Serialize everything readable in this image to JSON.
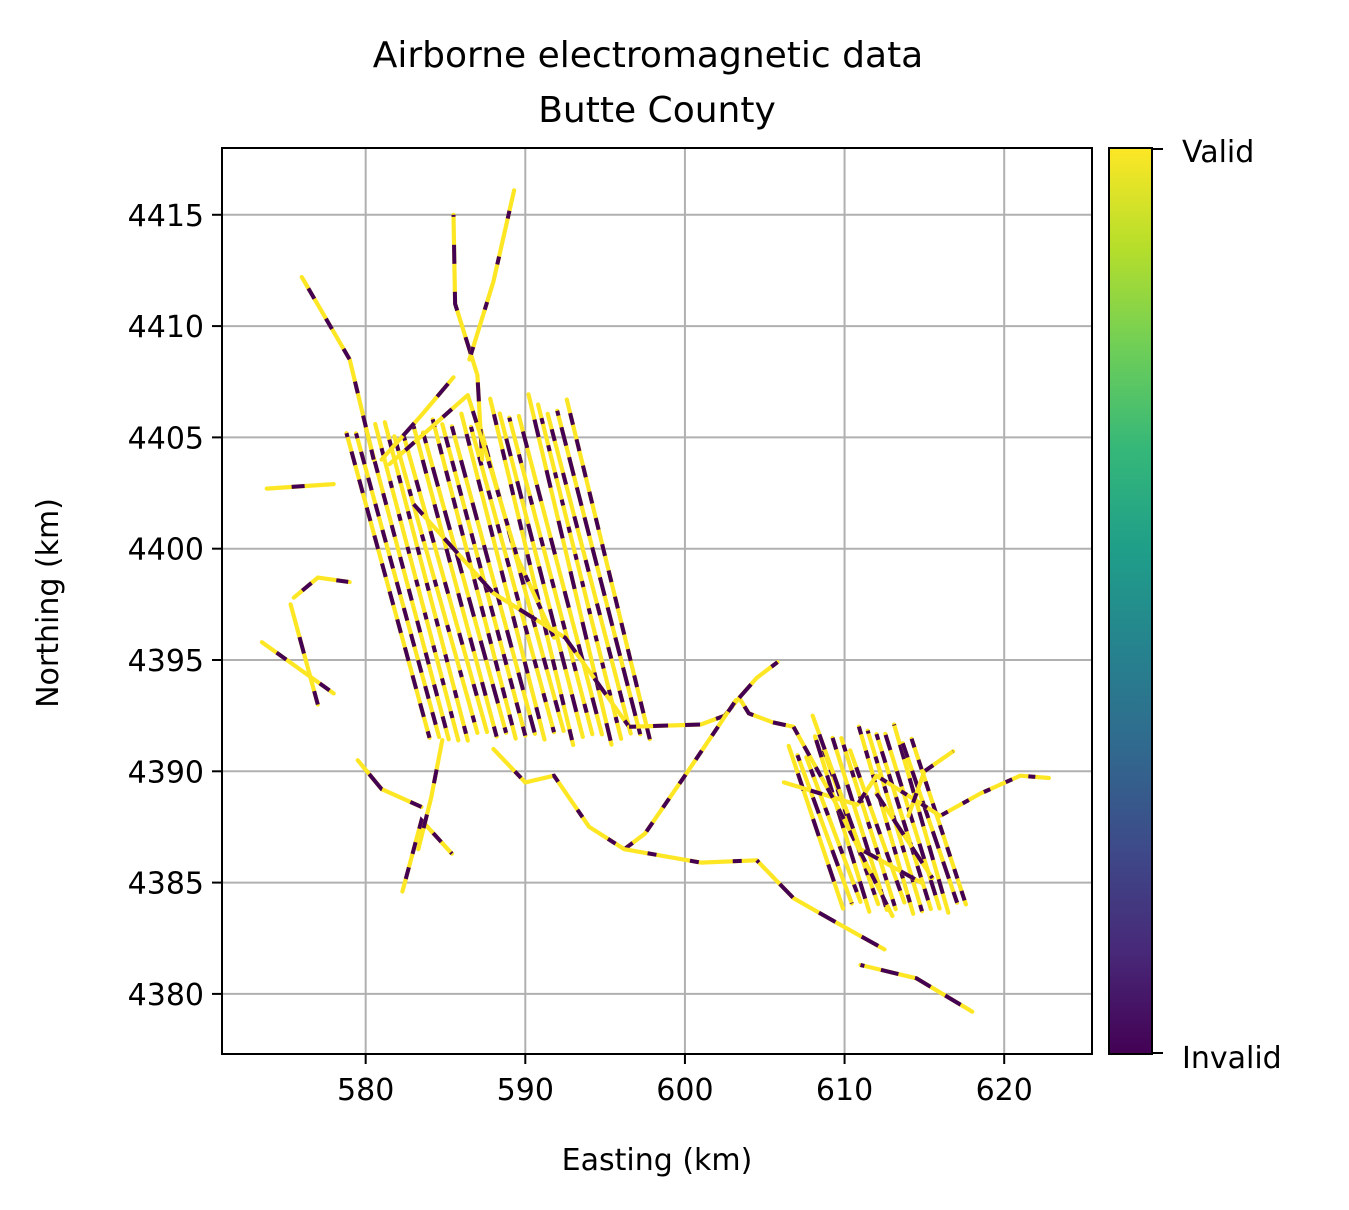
{
  "chart_data": {
    "type": "scatter",
    "title": "Airborne electromagnetic data\nButte County",
    "title_lines": [
      "Airborne electromagnetic data",
      "Butte County"
    ],
    "xlabel": "Easting (km)",
    "ylabel": "Northing (km)",
    "xlim": [
      571,
      625.5
    ],
    "ylim": [
      4377.3,
      4418
    ],
    "xticks": [
      580,
      590,
      600,
      610,
      620
    ],
    "yticks": [
      4380,
      4385,
      4390,
      4395,
      4400,
      4405,
      4410,
      4415
    ],
    "grid": true,
    "colorbar": {
      "colormap": "viridis",
      "stops": [
        "#440154",
        "#482878",
        "#3e4989",
        "#31688e",
        "#26828e",
        "#1f9e89",
        "#35b779",
        "#6ece58",
        "#b5de2b",
        "#fde725"
      ],
      "tick_labels": [
        "Invalid",
        "Valid"
      ],
      "range": [
        0,
        1
      ]
    },
    "colors": {
      "valid": "#fde725",
      "invalid": "#440154"
    },
    "flight_lines": [
      {
        "points": [
          [
            576,
            4412.2
          ],
          [
            579,
            4408.5
          ],
          [
            580.5,
            4404
          ]
        ]
      },
      {
        "points": [
          [
            585.5,
            4415
          ],
          [
            585.6,
            4411
          ],
          [
            587,
            4407.8
          ],
          [
            587.3,
            4404
          ]
        ]
      },
      {
        "points": [
          [
            589.3,
            4416.1
          ],
          [
            588,
            4412
          ],
          [
            586.5,
            4408.5
          ]
        ]
      },
      {
        "points": [
          [
            573.8,
            4402.7
          ],
          [
            578,
            4402.9
          ]
        ]
      },
      {
        "points": [
          [
            573.5,
            4395.8
          ],
          [
            578,
            4393.5
          ]
        ]
      },
      {
        "points": [
          [
            575.5,
            4397.8
          ],
          [
            577,
            4398.7
          ],
          [
            579,
            4398.5
          ]
        ]
      },
      {
        "points": [
          [
            575.3,
            4397.5
          ],
          [
            577,
            4393
          ]
        ]
      },
      {
        "points": [
          [
            579.5,
            4390.5
          ],
          [
            581,
            4389.2
          ],
          [
            583.5,
            4388.4
          ]
        ]
      },
      {
        "points": [
          [
            582.3,
            4384.6
          ],
          [
            583.5,
            4387.8
          ],
          [
            585.4,
            4386.3
          ]
        ]
      },
      {
        "points": [
          [
            584.8,
            4391.4
          ],
          [
            584.1,
            4388.8
          ],
          [
            583.3,
            4386.5
          ]
        ]
      },
      {
        "points": [
          [
            581,
            4404
          ],
          [
            583.5,
            4406
          ],
          [
            585.5,
            4407.7
          ]
        ]
      },
      {
        "points": [
          [
            581.5,
            4403.8
          ],
          [
            586.4,
            4406.9
          ],
          [
            587.5,
            4404.4
          ]
        ]
      },
      {
        "points": [
          [
            587.5,
            4404.4
          ],
          [
            589.5,
            4399.6
          ],
          [
            591.8,
            4396
          ]
        ]
      },
      {
        "points": [
          [
            583,
            4402
          ],
          [
            588,
            4398
          ],
          [
            592.5,
            4396
          ],
          [
            596.5,
            4392
          ]
        ]
      },
      {
        "points": [
          [
            596.5,
            4392
          ],
          [
            601,
            4392.1
          ],
          [
            602.5,
            4392.5
          ]
        ]
      },
      {
        "points": [
          [
            602.5,
            4392.5
          ],
          [
            603.4,
            4393.3
          ],
          [
            604,
            4392.6
          ],
          [
            605.5,
            4392.2
          ],
          [
            606.8,
            4392
          ]
        ]
      },
      {
        "points": [
          [
            603.4,
            4393.3
          ],
          [
            604.5,
            4394.2
          ],
          [
            605.8,
            4394.9
          ]
        ]
      },
      {
        "points": [
          [
            603.2,
            4393.2
          ],
          [
            600,
            4389.8
          ],
          [
            597.5,
            4387.2
          ],
          [
            596.2,
            4386.5
          ]
        ]
      },
      {
        "points": [
          [
            588,
            4391
          ],
          [
            590,
            4389.5
          ],
          [
            591.8,
            4389.8
          ],
          [
            594,
            4387.5
          ],
          [
            596.2,
            4386.5
          ],
          [
            601,
            4385.9
          ],
          [
            604.5,
            4386
          ]
        ]
      },
      {
        "points": [
          [
            604.5,
            4386
          ],
          [
            606.8,
            4384.3
          ],
          [
            609.5,
            4383.2
          ],
          [
            612.5,
            4382
          ]
        ]
      },
      {
        "points": [
          [
            611,
            4381.3
          ],
          [
            614.5,
            4380.7
          ],
          [
            618,
            4379.2
          ]
        ]
      },
      {
        "points": [
          [
            606.2,
            4389.5
          ],
          [
            610.8,
            4388.5
          ],
          [
            612,
            4389.8
          ]
        ]
      },
      {
        "points": [
          [
            612,
            4389.8
          ],
          [
            616,
            4388
          ],
          [
            618.5,
            4389
          ],
          [
            621,
            4389.8
          ],
          [
            622.8,
            4389.7
          ]
        ]
      },
      {
        "points": [
          [
            614,
            4388
          ],
          [
            615,
            4390
          ],
          [
            616.8,
            4390.9
          ]
        ]
      },
      {
        "points": [
          [
            606.8,
            4392
          ],
          [
            609.5,
            4388.5
          ],
          [
            613,
            4383.5
          ]
        ]
      },
      {
        "points": [
          [
            608,
            4392.5
          ],
          [
            611,
            4386.5
          ],
          [
            614.8,
            4385
          ]
        ]
      },
      {
        "points": [
          [
            615.5,
            4385.2
          ],
          [
            612,
            4389
          ]
        ]
      }
    ],
    "survey_blocks": [
      {
        "lines": 24,
        "x_start": 578.8,
        "x_step": 0.6,
        "y_top": 4405.2,
        "y_bottom": 4391.5,
        "slant": 5.2,
        "rise": 0.3
      },
      {
        "lines": 15,
        "x_start": 606.5,
        "x_step": 0.55,
        "y_top": 4391.2,
        "y_bottom": 4383.8,
        "slant": 3.4,
        "rise": 0.25
      }
    ]
  }
}
